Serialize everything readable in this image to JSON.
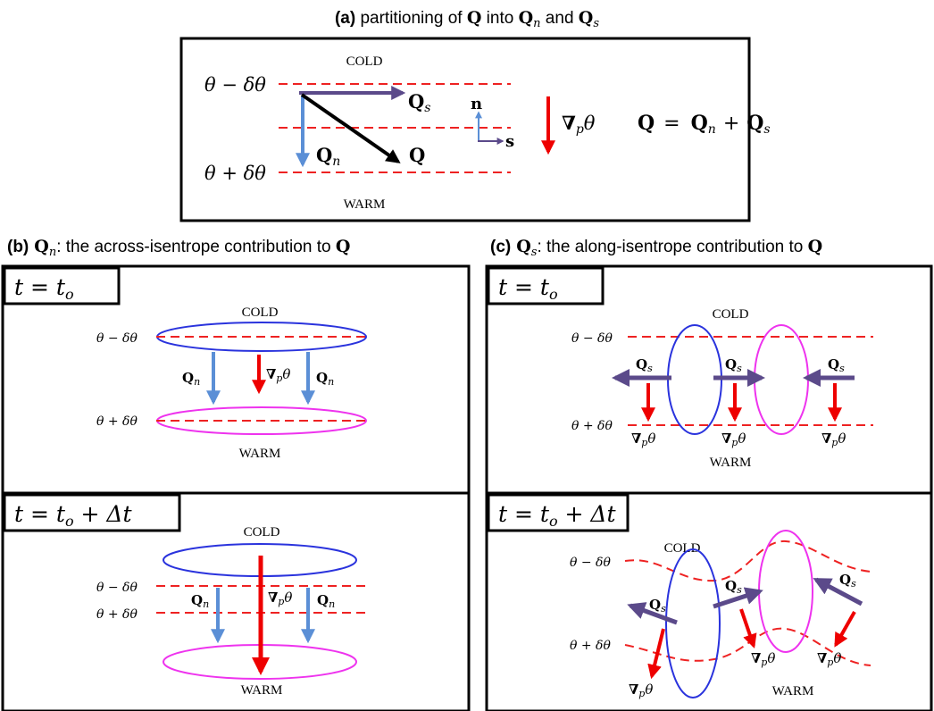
{
  "colors": {
    "isentrope": "#ee2222",
    "grad_theta": "#ee0000",
    "q_n": "#5b8fd6",
    "q_s": "#5b4a8a",
    "q_total": "#000000",
    "cold_ellipse": "#2a33dd",
    "warm_ellipse": "#ee33ee",
    "frame": "#000000"
  },
  "panel_a": {
    "title_bold": "(a)",
    "title_text": " partitioning of ",
    "title_q": "Q",
    "title_into": " into ",
    "title_qn": "Q",
    "title_n": "n",
    "title_and": " and ",
    "title_qs": "Q",
    "title_s": "s",
    "cold": "COLD",
    "warm": "WARM",
    "theta_minus": "θ − δθ",
    "theta_plus": "θ + δθ",
    "qs_label": "Q",
    "qs_sub": "s",
    "qn_label": "Q",
    "qn_sub": "n",
    "q_label": "Q",
    "n_axis": "n",
    "s_axis": "s",
    "grad_label": "∇",
    "grad_sub": "p",
    "grad_theta": "θ",
    "eq_lhs": "Q",
    "eq_eq": "=",
    "eq_q1": "Q",
    "eq_n": "n",
    "eq_plus": "+",
    "eq_q2": "Q",
    "eq_s": "s"
  },
  "panel_b": {
    "title_bold": "(b)",
    "title_q": "Q",
    "title_n": "n",
    "title_rest": ": the across-isentrope contribution to ",
    "title_q2": "Q",
    "t0_label": "t = t",
    "t0_sub": "o",
    "t1_label": "t = t",
    "t1_sub": "o",
    "t1_tail": " + Δt",
    "cold": "COLD",
    "warm": "WARM",
    "theta_minus": "θ − δθ",
    "theta_plus": "θ + δθ",
    "qn_label": "Q",
    "qn_sub": "n",
    "grad_label": "∇",
    "grad_sub": "p",
    "grad_theta": "θ"
  },
  "panel_c": {
    "title_bold": "(c)",
    "title_q": "Q",
    "title_s": "s",
    "title_rest": ": the along-isentrope contribution to ",
    "title_q2": "Q",
    "t0_label": "t = t",
    "t0_sub": "o",
    "t1_label": "t = t",
    "t1_sub": "o",
    "t1_tail": " + Δt",
    "cold": "COLD",
    "warm": "WARM",
    "theta_minus": "θ − δθ",
    "theta_plus": "θ + δθ",
    "qs_label": "Q",
    "qs_sub": "s",
    "grad_label": "∇",
    "grad_sub": "p",
    "grad_theta": "θ"
  }
}
